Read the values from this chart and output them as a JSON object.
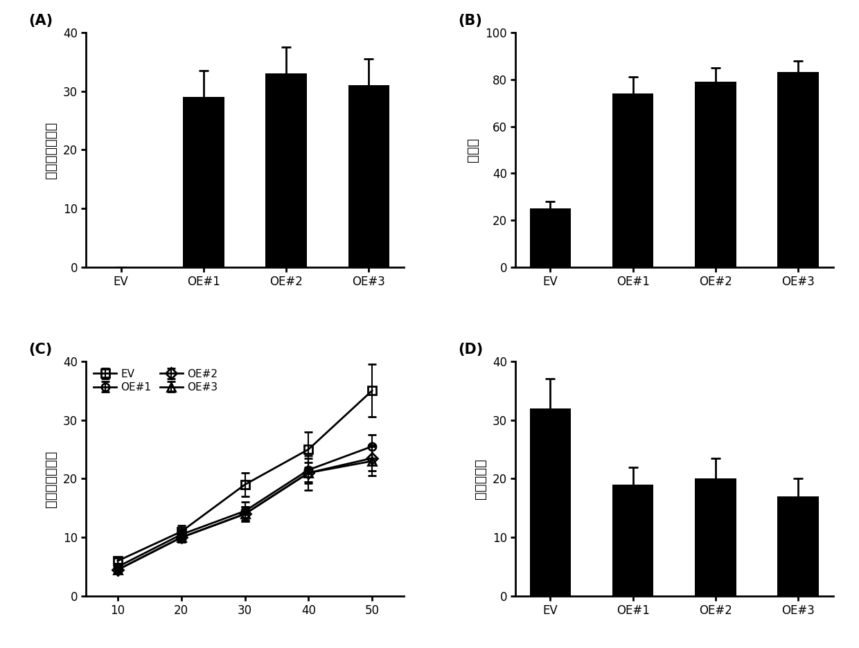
{
  "panel_A": {
    "label": "(A)",
    "categories": [
      "EV",
      "OE#1",
      "OE#2",
      "OE#3"
    ],
    "values": [
      0,
      29,
      33,
      31
    ],
    "errors": [
      0,
      4.5,
      4.5,
      4.5
    ],
    "ylabel": "基因相对表达量",
    "ylim": [
      0,
      40
    ],
    "yticks": [
      0,
      10,
      20,
      30,
      40
    ]
  },
  "panel_B": {
    "label": "(B)",
    "categories": [
      "EV",
      "OE#1",
      "OE#2",
      "OE#3"
    ],
    "values": [
      25,
      74,
      79,
      83
    ],
    "errors": [
      3,
      7,
      6,
      5
    ],
    "ylabel": "存活率",
    "ylim": [
      0,
      100
    ],
    "yticks": [
      0,
      20,
      40,
      60,
      80,
      100
    ]
  },
  "panel_C": {
    "label": "(C)",
    "ylabel": "叶片相对失水率",
    "xlim": [
      5,
      55
    ],
    "ylim": [
      0,
      40
    ],
    "yticks": [
      0,
      10,
      20,
      30,
      40
    ],
    "xticks": [
      10,
      20,
      30,
      40,
      50
    ],
    "series": {
      "EV": {
        "x": [
          10,
          20,
          30,
          40,
          50
        ],
        "y": [
          6.0,
          11.0,
          19.0,
          25.0,
          35.0
        ],
        "err": [
          0.5,
          1.0,
          2.0,
          3.0,
          4.5
        ]
      },
      "OE#1": {
        "x": [
          10,
          20,
          30,
          40,
          50
        ],
        "y": [
          5.0,
          10.5,
          14.5,
          21.5,
          25.5
        ],
        "err": [
          0.4,
          0.8,
          1.5,
          2.0,
          2.0
        ]
      },
      "OE#2": {
        "x": [
          10,
          20,
          30,
          40,
          50
        ],
        "y": [
          4.5,
          10.0,
          14.0,
          21.0,
          23.5
        ],
        "err": [
          0.4,
          0.8,
          1.2,
          1.8,
          2.2
        ]
      },
      "OE#3": {
        "x": [
          10,
          20,
          30,
          40,
          50
        ],
        "y": [
          4.5,
          10.0,
          14.0,
          21.0,
          23.0
        ],
        "err": [
          0.4,
          0.8,
          1.2,
          3.0,
          2.5
        ]
      }
    },
    "legend_order": [
      "EV",
      "OE#1",
      "OE#2",
      "OE#3"
    ],
    "markers": {
      "EV": "s",
      "OE#1": "o",
      "OE#2": "D",
      "OE#3": "^"
    }
  },
  "panel_D": {
    "label": "(D)",
    "categories": [
      "EV",
      "OE#1",
      "OE#2",
      "OE#3"
    ],
    "values": [
      32,
      19,
      20,
      17
    ],
    "errors": [
      5,
      3,
      3.5,
      3
    ],
    "ylabel": "相对电导率",
    "ylim": [
      0,
      40
    ],
    "yticks": [
      0,
      10,
      20,
      30,
      40
    ]
  },
  "bar_color": "#000000",
  "line_color": "#000000",
  "bg_color": "#ffffff",
  "bar_width": 0.5,
  "fontsize_label": 14,
  "fontsize_tick": 12,
  "fontsize_panel": 15
}
